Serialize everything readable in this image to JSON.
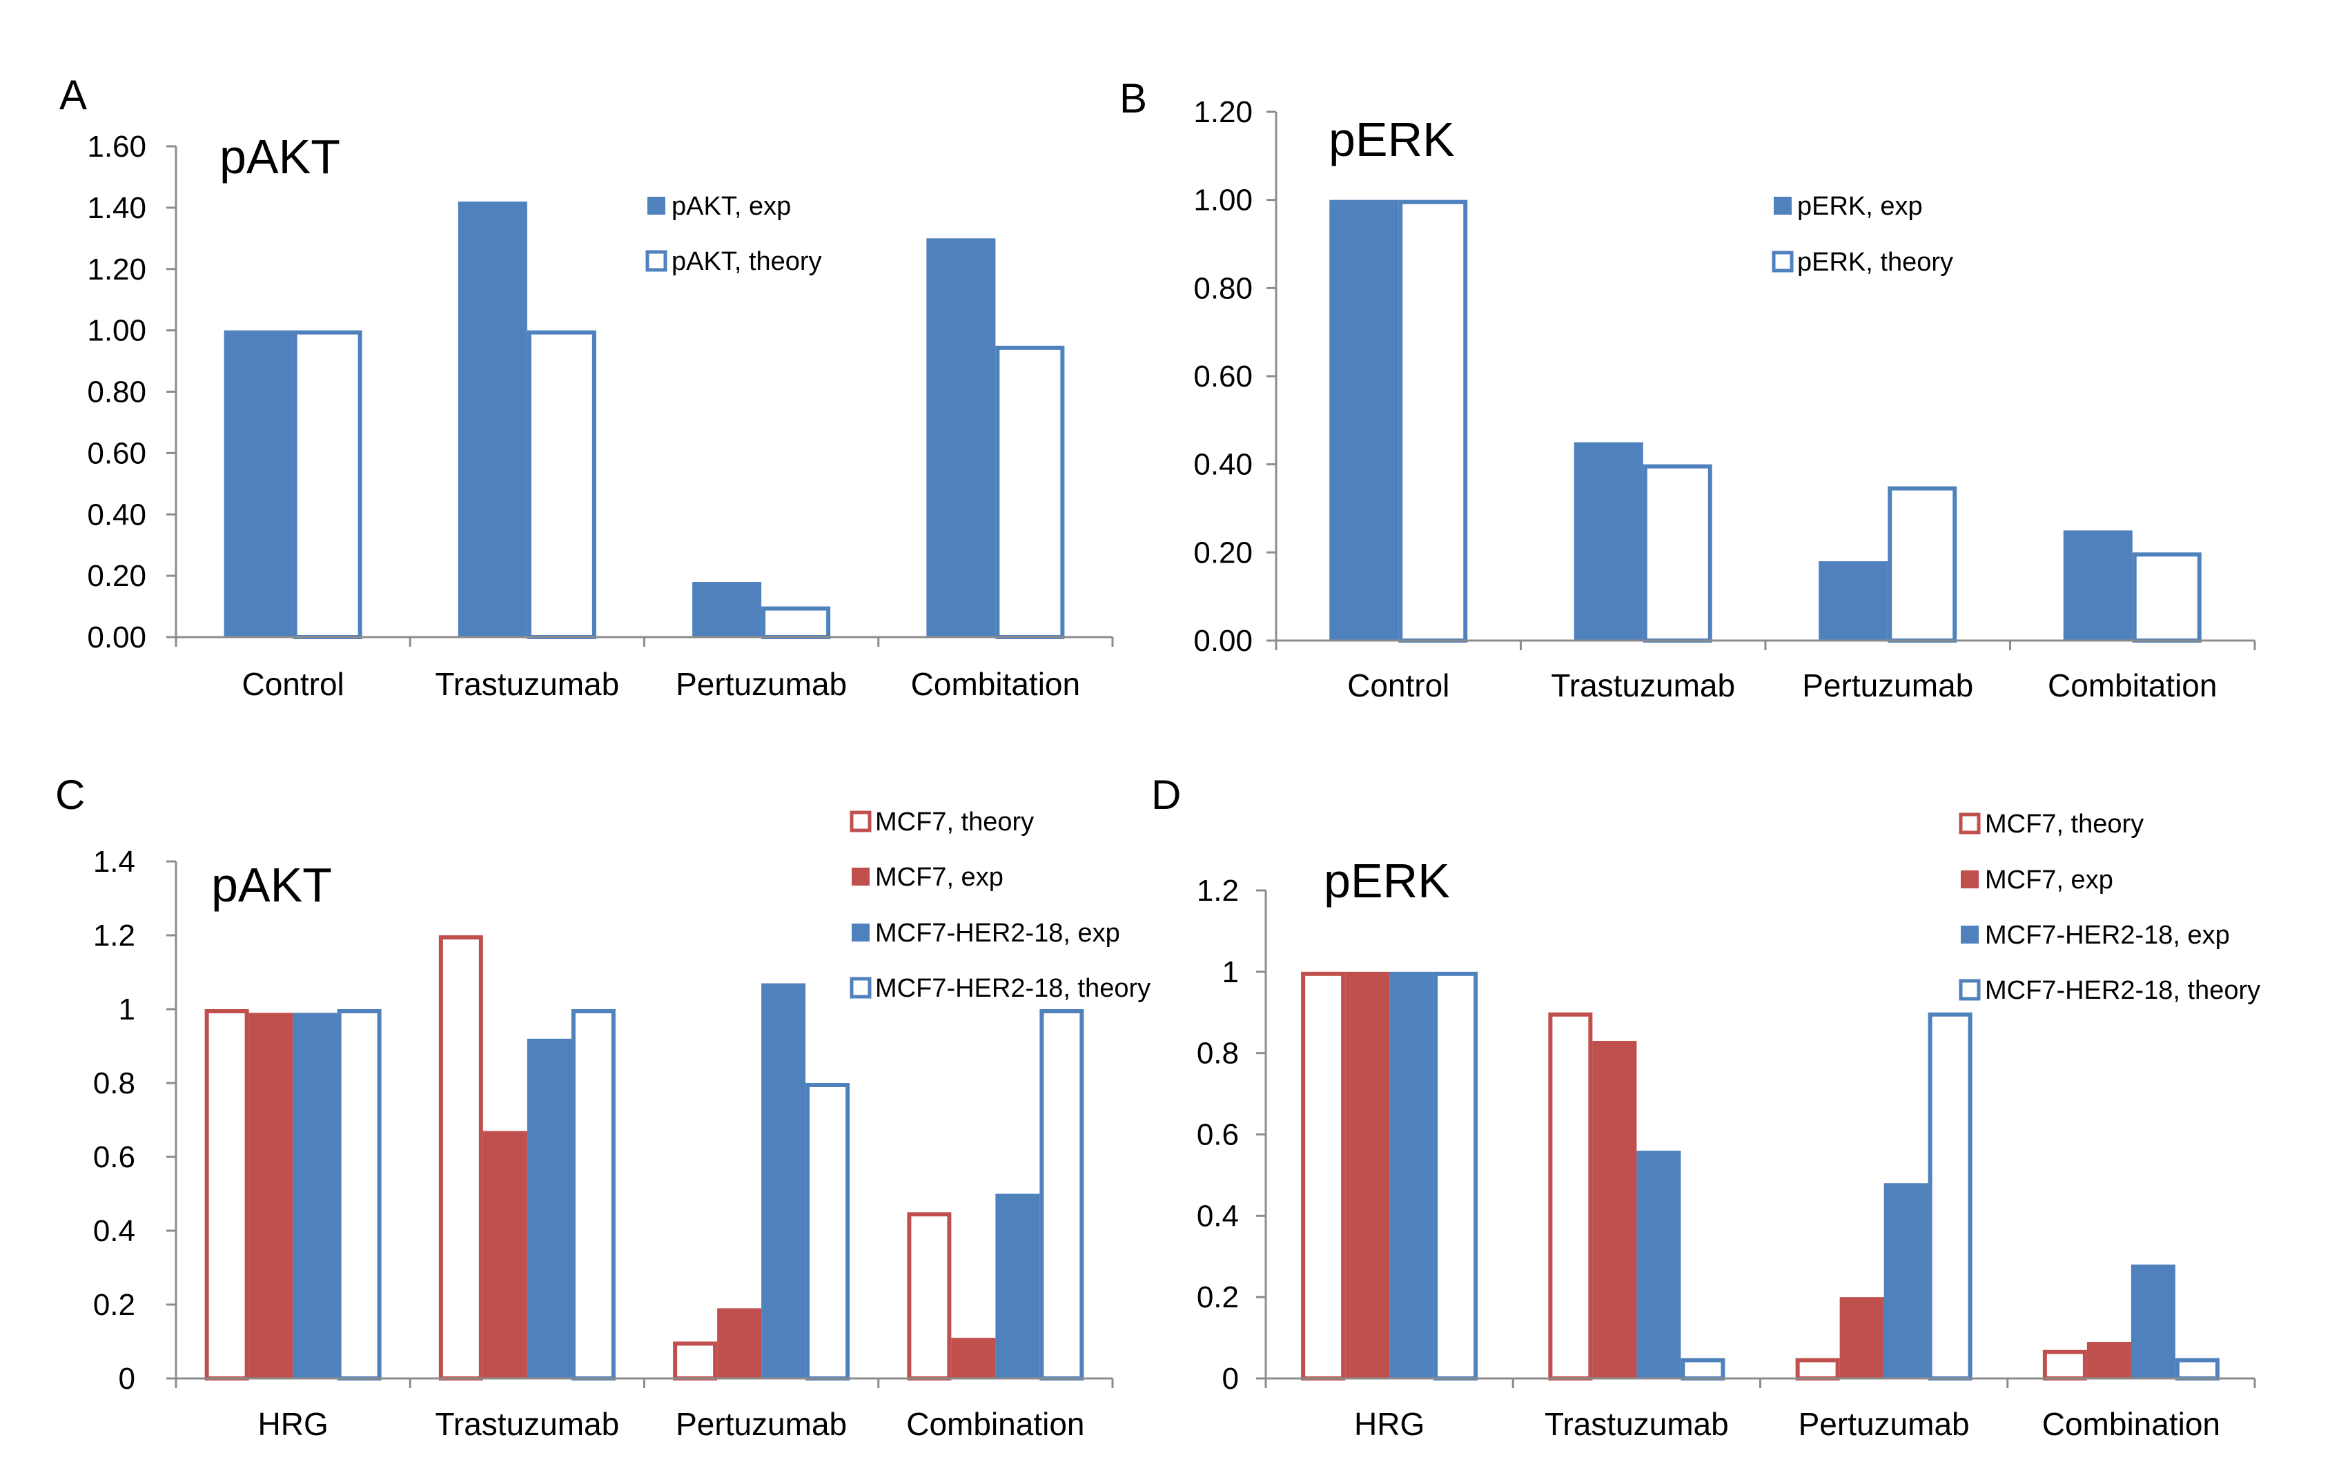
{
  "chart_data": [
    {
      "panel_label": "A",
      "type": "bar",
      "title": "pAKT",
      "categories": [
        "Control",
        "Trastuzumab",
        "Pertuzumab",
        "Combitation"
      ],
      "series": [
        {
          "name": "pAKT, exp",
          "values": [
            1.0,
            1.42,
            0.18,
            1.3
          ],
          "color": "#4f81bd",
          "fill": "solid"
        },
        {
          "name": "pAKT, theory",
          "values": [
            1.0,
            1.0,
            0.1,
            0.95
          ],
          "color": "#4f81bd",
          "fill": "outline"
        }
      ],
      "ylim": [
        0,
        1.6
      ],
      "yticks": [
        "0.00",
        "0.20",
        "0.40",
        "0.60",
        "0.80",
        "1.00",
        "1.20",
        "1.40",
        "1.60"
      ],
      "xlabel": "",
      "ylabel": "",
      "legend": "top-right"
    },
    {
      "panel_label": "B",
      "type": "bar",
      "title": "pERK",
      "categories": [
        "Control",
        "Trastuzumab",
        "Pertuzumab",
        "Combitation"
      ],
      "series": [
        {
          "name": "pERK, exp",
          "values": [
            1.0,
            0.45,
            0.18,
            0.25
          ],
          "color": "#4f81bd",
          "fill": "solid"
        },
        {
          "name": "pERK, theory",
          "values": [
            1.0,
            0.4,
            0.35,
            0.2
          ],
          "color": "#4f81bd",
          "fill": "outline"
        }
      ],
      "ylim": [
        0,
        1.2
      ],
      "yticks": [
        "0.00",
        "0.20",
        "0.40",
        "0.60",
        "0.80",
        "1.00",
        "1.20"
      ],
      "xlabel": "",
      "ylabel": "",
      "legend": "top-right"
    },
    {
      "panel_label": "C",
      "type": "bar",
      "title": "pAKT",
      "categories": [
        "HRG",
        "Trastuzumab",
        "Pertuzumab",
        "Combination"
      ],
      "series": [
        {
          "name": "MCF7, theory",
          "values": [
            1.0,
            1.2,
            0.1,
            0.45
          ],
          "color": "#c0504d",
          "fill": "outline"
        },
        {
          "name": "MCF7, exp",
          "values": [
            0.99,
            0.67,
            0.19,
            0.11
          ],
          "color": "#c0504d",
          "fill": "solid"
        },
        {
          "name": "MCF7-HER2-18, exp",
          "values": [
            0.99,
            0.92,
            1.07,
            0.5
          ],
          "color": "#4f81bd",
          "fill": "solid"
        },
        {
          "name": "MCF7-HER2-18, theory",
          "values": [
            1.0,
            1.0,
            0.8,
            1.0
          ],
          "color": "#4f81bd",
          "fill": "outline"
        }
      ],
      "ylim": [
        0,
        1.4
      ],
      "yticks": [
        "0",
        "0.2",
        "0.4",
        "0.6",
        "0.8",
        "1",
        "1.2",
        "1.4"
      ],
      "xlabel": "",
      "ylabel": "",
      "legend": "top-right"
    },
    {
      "panel_label": "D",
      "type": "bar",
      "title": "pERK",
      "categories": [
        "HRG",
        "Trastuzumab",
        "Pertuzumab",
        "Combination"
      ],
      "series": [
        {
          "name": "MCF7, theory",
          "values": [
            1.0,
            0.9,
            0.05,
            0.07
          ],
          "color": "#c0504d",
          "fill": "outline"
        },
        {
          "name": "MCF7, exp",
          "values": [
            1.0,
            0.83,
            0.2,
            0.09
          ],
          "color": "#c0504d",
          "fill": "solid"
        },
        {
          "name": "MCF7-HER2-18, exp",
          "values": [
            1.0,
            0.56,
            0.48,
            0.28
          ],
          "color": "#4f81bd",
          "fill": "solid"
        },
        {
          "name": "MCF7-HER2-18, theory",
          "values": [
            1.0,
            0.05,
            0.9,
            0.05
          ],
          "color": "#4f81bd",
          "fill": "outline"
        }
      ],
      "ylim": [
        0,
        1.2
      ],
      "yticks": [
        "0",
        "0.2",
        "0.4",
        "0.6",
        "0.8",
        "1",
        "1.2"
      ],
      "xlabel": "",
      "ylabel": "",
      "legend": "top-right"
    }
  ]
}
